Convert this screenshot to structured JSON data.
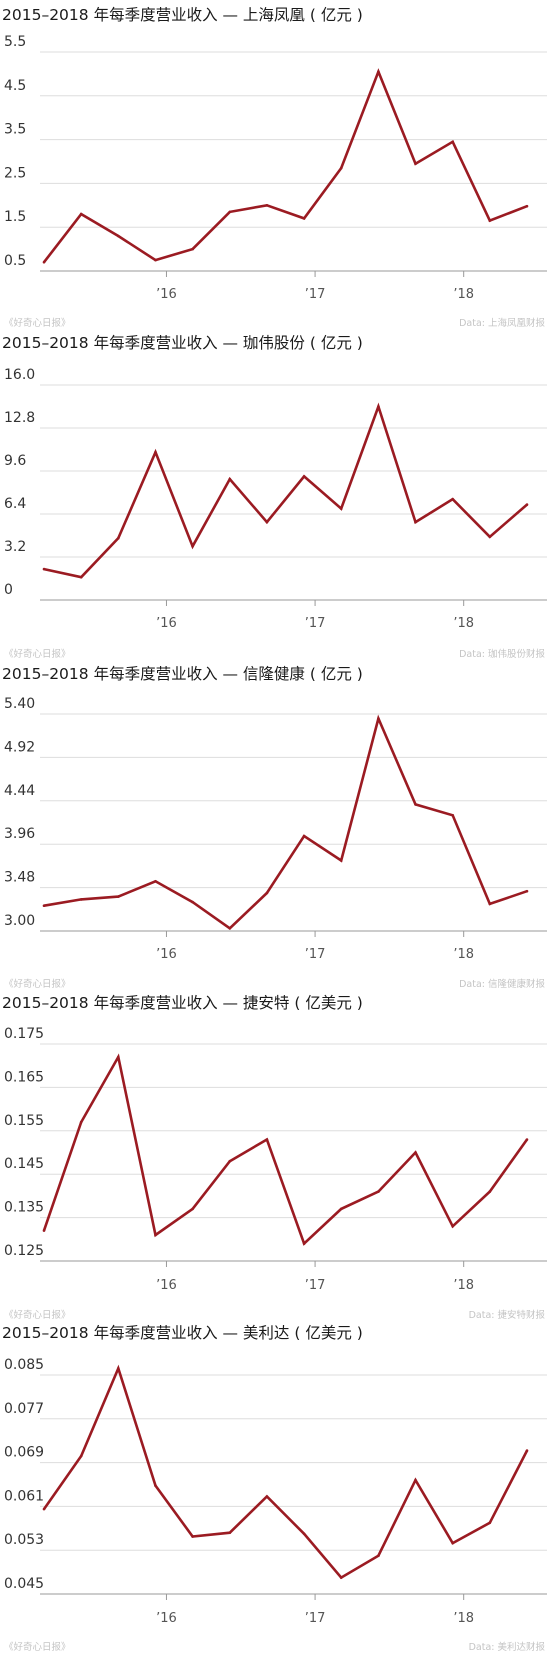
{
  "colors": {
    "line": "#9b1b22"
  },
  "chart_data": [
    {
      "type": "line",
      "title": "2015–2018 年每季度营业收入 — 上海凤凰 ( 亿元 )",
      "source": "Data: 上海凤凰财报",
      "logo": "《好奇心日报》",
      "x": [
        "2015Q2",
        "2015Q3",
        "2015Q4",
        "2016Q1",
        "2016Q2",
        "2016Q3",
        "2016Q4",
        "2017Q1",
        "2017Q2",
        "2017Q3",
        "2017Q4",
        "2018Q1",
        "2018Q2",
        "2018Q3"
      ],
      "x_tick_labels": [
        "’16",
        "’17",
        "’18"
      ],
      "x_tick_positions": [
        3,
        7,
        11
      ],
      "values": [
        0.7,
        1.8,
        1.3,
        0.75,
        1.0,
        1.85,
        2.0,
        1.7,
        2.85,
        5.05,
        2.95,
        3.45,
        1.65,
        1.98
      ],
      "yticks": [
        0.5,
        1.5,
        2.5,
        3.5,
        4.5,
        5.5
      ],
      "ytick_labels": [
        "0.5",
        "1.5",
        "2.5",
        "3.5",
        "4.5",
        "5.5"
      ],
      "ylim": [
        0.5,
        5.5
      ],
      "grid": true
    },
    {
      "type": "line",
      "title": "2015–2018 年每季度营业收入 — 珈伟股份 ( 亿元 )",
      "source": "Data: 珈伟股份财报",
      "logo": "《好奇心日报》",
      "x": [
        "2015Q2",
        "2015Q3",
        "2015Q4",
        "2016Q1",
        "2016Q2",
        "2016Q3",
        "2016Q4",
        "2017Q1",
        "2017Q2",
        "2017Q3",
        "2017Q4",
        "2018Q1",
        "2018Q2",
        "2018Q3"
      ],
      "x_tick_labels": [
        "’16",
        "’17",
        "’18"
      ],
      "x_tick_positions": [
        3,
        7,
        11
      ],
      "values": [
        2.3,
        1.7,
        4.6,
        11.0,
        4.0,
        9.0,
        5.8,
        9.2,
        6.8,
        14.4,
        5.8,
        7.5,
        4.7,
        7.1
      ],
      "yticks": [
        0,
        3.2,
        6.4,
        9.6,
        12.8,
        16.0
      ],
      "ytick_labels": [
        "0",
        "3.2",
        "6.4",
        "9.6",
        "12.8",
        "16.0"
      ],
      "ylim": [
        0,
        16.0
      ],
      "grid": true
    },
    {
      "type": "line",
      "title": "2015–2018 年每季度营业收入 — 信隆健康 ( 亿元 )",
      "source": "Data: 信隆健康财报",
      "logo": "《好奇心日报》",
      "x": [
        "2015Q2",
        "2015Q3",
        "2015Q4",
        "2016Q1",
        "2016Q2",
        "2016Q3",
        "2016Q4",
        "2017Q1",
        "2017Q2",
        "2017Q3",
        "2017Q4",
        "2018Q1",
        "2018Q2",
        "2018Q3"
      ],
      "x_tick_labels": [
        "’16",
        "’17",
        "’18"
      ],
      "x_tick_positions": [
        3,
        7,
        11
      ],
      "values": [
        3.28,
        3.35,
        3.38,
        3.55,
        3.32,
        3.03,
        3.42,
        4.05,
        3.78,
        5.35,
        4.4,
        4.28,
        3.3,
        3.44
      ],
      "yticks": [
        3.0,
        3.48,
        3.96,
        4.44,
        4.92,
        5.4
      ],
      "ytick_labels": [
        "3.00",
        "3.48",
        "3.96",
        "4.44",
        "4.92",
        "5.40"
      ],
      "ylim": [
        3.0,
        5.4
      ],
      "grid": true
    },
    {
      "type": "line",
      "title": "2015–2018 年每季度营业收入 — 捷安特 ( 亿美元 )",
      "source": "Data: 捷安特财报",
      "logo": "《好奇心日报》",
      "x": [
        "2015Q2",
        "2015Q3",
        "2015Q4",
        "2016Q1",
        "2016Q2",
        "2016Q3",
        "2016Q4",
        "2017Q1",
        "2017Q2",
        "2017Q3",
        "2017Q4",
        "2018Q1",
        "2018Q2",
        "2018Q3"
      ],
      "x_tick_labels": [
        "’16",
        "’17",
        "’18"
      ],
      "x_tick_positions": [
        3,
        7,
        11
      ],
      "values": [
        0.132,
        0.157,
        0.172,
        0.131,
        0.137,
        0.148,
        0.153,
        0.129,
        0.137,
        0.141,
        0.15,
        0.133,
        0.141,
        0.153
      ],
      "yticks": [
        0.125,
        0.135,
        0.145,
        0.155,
        0.165,
        0.175
      ],
      "ytick_labels": [
        "0.125",
        "0.135",
        "0.145",
        "0.155",
        "0.165",
        "0.175"
      ],
      "ylim": [
        0.125,
        0.175
      ],
      "grid": true
    },
    {
      "type": "line",
      "title": "2015–2018 年每季度营业收入 — 美利达 ( 亿美元 )",
      "source": "Data: 美利达财报",
      "logo": "《好奇心日报》",
      "x": [
        "2015Q2",
        "2015Q3",
        "2015Q4",
        "2016Q1",
        "2016Q2",
        "2016Q3",
        "2016Q4",
        "2017Q1",
        "2017Q2",
        "2017Q3",
        "2017Q4",
        "2018Q1",
        "2018Q2",
        "2018Q3"
      ],
      "x_tick_labels": [
        "’16",
        "’17",
        "’18"
      ],
      "x_tick_positions": [
        3,
        7,
        11
      ],
      "values": [
        0.0605,
        0.0702,
        0.0862,
        0.0648,
        0.0555,
        0.0562,
        0.0628,
        0.056,
        0.048,
        0.052,
        0.0658,
        0.0543,
        0.058,
        0.0712
      ],
      "yticks": [
        0.045,
        0.053,
        0.061,
        0.069,
        0.077,
        0.085
      ],
      "ytick_labels": [
        "0.045",
        "0.053",
        "0.061",
        "0.069",
        "0.077",
        "0.085"
      ],
      "ylim": [
        0.045,
        0.085
      ],
      "grid": true
    }
  ]
}
